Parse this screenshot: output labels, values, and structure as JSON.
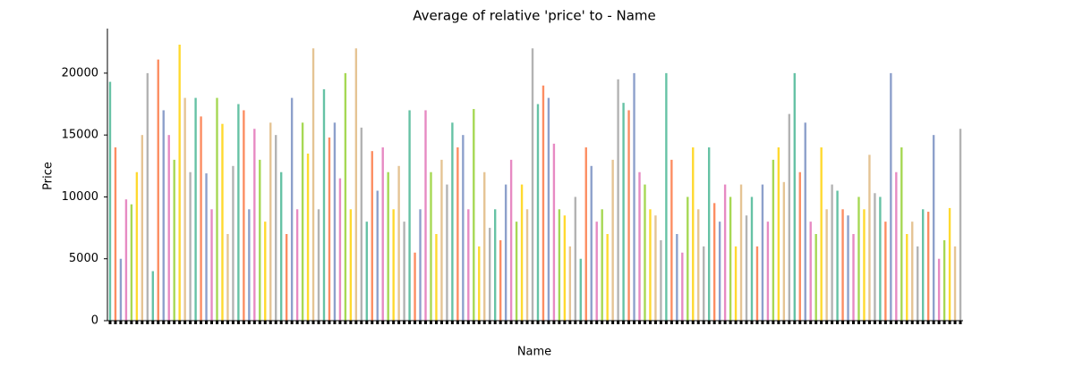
{
  "chart_data": {
    "type": "bar",
    "title": "Average of relative 'price' to - Name",
    "x_label": "Name",
    "y_label": "Price",
    "categories": [
      null,
      null,
      null,
      null,
      null,
      null,
      null,
      null,
      null,
      null,
      null,
      null,
      null,
      null,
      null,
      null,
      null,
      null,
      null,
      null,
      null,
      null,
      null,
      null,
      null,
      null,
      null,
      null,
      null,
      null,
      null,
      null,
      null,
      null,
      null,
      null,
      null,
      null,
      null,
      null,
      null,
      null,
      null,
      null,
      null,
      null,
      null,
      null,
      null,
      null,
      null,
      null,
      null,
      null,
      null,
      null,
      null,
      null,
      null,
      null,
      null,
      null,
      null,
      null,
      null,
      null,
      null,
      null,
      null,
      null,
      null,
      null,
      null,
      null,
      null,
      null,
      null,
      null,
      null,
      null,
      null,
      null,
      null,
      null,
      null,
      null,
      null,
      null,
      null,
      null,
      null,
      null,
      null,
      null,
      null,
      null,
      null,
      null,
      null,
      null,
      null,
      null,
      null,
      null,
      null,
      null,
      null,
      null,
      null,
      null,
      null,
      null,
      null,
      null,
      null,
      null,
      null,
      null,
      null,
      null,
      null,
      null,
      null,
      null,
      null,
      null,
      null,
      null,
      null,
      null,
      null,
      null,
      null,
      null,
      null,
      null,
      null,
      null,
      null,
      null,
      null,
      null,
      null,
      null,
      null,
      null,
      null,
      null,
      null,
      null,
      null,
      null,
      null,
      null,
      null,
      null,
      null,
      null,
      null,
      null
    ],
    "values": [
      19300,
      14000,
      5000,
      9800,
      9400,
      12000,
      15000,
      20000,
      4000,
      21100,
      17000,
      15000,
      13000,
      22300,
      18000,
      12000,
      18000,
      16500,
      11900,
      9000,
      18000,
      15900,
      7000,
      12500,
      17500,
      17000,
      9000,
      15500,
      13000,
      8000,
      16000,
      15000,
      12000,
      7000,
      18000,
      9000,
      16000,
      13500,
      22000,
      9000,
      18700,
      14800,
      16000,
      11500,
      20000,
      9000,
      22000,
      15600,
      8000,
      13700,
      10500,
      14000,
      12000,
      9000,
      12500,
      8000,
      17000,
      5500,
      9000,
      17000,
      12000,
      7000,
      13000,
      11000,
      16000,
      14000,
      15000,
      9000,
      17100,
      6000,
      12000,
      7500,
      9000,
      6500,
      11000,
      13000,
      8000,
      11000,
      9000,
      22000,
      17500,
      19000,
      18000,
      14300,
      9000,
      8500,
      6000,
      10000,
      5000,
      14000,
      12500,
      8000,
      9000,
      7000,
      13000,
      19500,
      17600,
      17000,
      20000,
      12000,
      11000,
      9000,
      8500,
      6500,
      20000,
      13000,
      7000,
      5500,
      10000,
      14000,
      9000,
      6000,
      14000,
      9500,
      8000,
      11000,
      10000,
      6000,
      11000,
      8500,
      10000,
      6000,
      11000,
      8000,
      13000,
      14000,
      11200,
      16700,
      20000,
      12000,
      16000,
      8000,
      7000,
      14000,
      9000,
      11000,
      10500,
      9000,
      8500,
      7000,
      10000,
      9000,
      13400,
      10300,
      10000,
      8000,
      20000,
      12000,
      14000,
      7000,
      8000,
      6000,
      9000,
      8800,
      15000,
      5000,
      6500,
      9100,
      6000,
      15500
    ],
    "palette": [
      "#66c2a5",
      "#fc8d62",
      "#8da0cb",
      "#e78ac3",
      "#a6d854",
      "#ffd92f",
      "#e5c494",
      "#b3b3b3"
    ],
    "ylim": [
      0,
      23600
    ],
    "yticks": [
      0,
      5000,
      10000,
      15000,
      20000
    ],
    "grid": false
  }
}
